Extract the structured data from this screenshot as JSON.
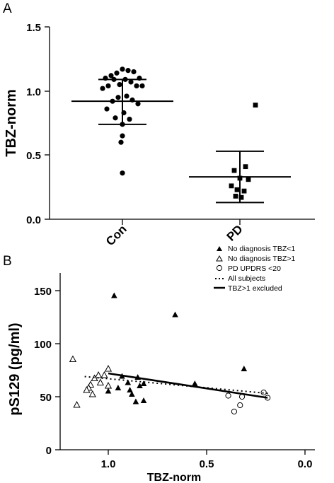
{
  "chart_data": [
    {
      "panel": "A",
      "type": "scatter",
      "ylabel": "TBZ-norm",
      "ylim": [
        0,
        1.5
      ],
      "yticks": [
        "0.0",
        "0.5",
        "1.0",
        "1.5"
      ],
      "categories": [
        "Con",
        "PD"
      ],
      "series": [
        {
          "category": "Con",
          "marker": "circle",
          "values": [
            1.17,
            1.16,
            1.14,
            1.15,
            1.12,
            1.1,
            1.1,
            1.09,
            1.09,
            1.07,
            1.05,
            1.04,
            1.04,
            1.04,
            1.02,
            0.96,
            0.95,
            0.93,
            0.92,
            0.9,
            0.86,
            0.83,
            0.79,
            0.78,
            0.74,
            0.65,
            0.6,
            0.36
          ],
          "mean": 0.92,
          "sd_upper": 1.09,
          "sd_lower": 0.74
        },
        {
          "category": "PD",
          "marker": "square",
          "values": [
            0.89,
            0.41,
            0.38,
            0.32,
            0.31,
            0.26,
            0.23,
            0.22,
            0.18,
            0.17
          ],
          "mean": 0.33,
          "sd_upper": 0.53,
          "sd_lower": 0.13
        }
      ]
    },
    {
      "panel": "B",
      "type": "scatter",
      "xlabel": "TBZ-norm",
      "ylabel": "pS129 (pg/ml)",
      "xlim": [
        1.25,
        0.0
      ],
      "ylim": [
        0,
        160
      ],
      "xticks": [
        "1.0",
        "0.5",
        "0.0"
      ],
      "yticks": [
        "0",
        "50",
        "100",
        "150"
      ],
      "legend_position": "top-right",
      "legend": [
        {
          "label": "No diagnosis TBZ<1",
          "symbol": "filled-triangle"
        },
        {
          "label": "No diagnosis TBZ>1",
          "symbol": "open-triangle"
        },
        {
          "label": "PD UPDRS <20",
          "symbol": "open-circle"
        },
        {
          "label": "All subjects",
          "symbol": "dotted-line"
        },
        {
          "label": "TBZ>1 excluded",
          "symbol": "solid-line"
        }
      ],
      "series": [
        {
          "name": "No diagnosis TBZ<1",
          "marker": "filled-triangle",
          "points": [
            [
              0.97,
              145
            ],
            [
              0.66,
              127
            ],
            [
              0.31,
              76
            ],
            [
              0.93,
              69
            ],
            [
              0.85,
              68
            ],
            [
              0.9,
              63
            ],
            [
              0.84,
              60
            ],
            [
              0.82,
              62
            ],
            [
              0.95,
              58
            ],
            [
              0.89,
              56
            ],
            [
              1.0,
              55
            ],
            [
              0.88,
              52
            ],
            [
              0.82,
              46
            ],
            [
              0.86,
              45
            ],
            [
              0.56,
              62
            ]
          ]
        },
        {
          "name": "No diagnosis TBZ>1",
          "marker": "open-triangle",
          "points": [
            [
              1.18,
              85
            ],
            [
              1.16,
              42
            ],
            [
              1.0,
              76
            ],
            [
              1.02,
              70
            ],
            [
              1.05,
              70
            ],
            [
              1.07,
              67
            ],
            [
              1.09,
              61
            ],
            [
              1.1,
              58
            ],
            [
              1.11,
              56
            ],
            [
              1.08,
              52
            ],
            [
              1.04,
              63
            ],
            [
              1.0,
              60
            ]
          ]
        },
        {
          "name": "PD UPDRS <20",
          "marker": "open-circle",
          "points": [
            [
              0.36,
              36
            ],
            [
              0.33,
              42
            ],
            [
              0.32,
              50
            ],
            [
              0.39,
              51
            ],
            [
              0.21,
              54
            ],
            [
              0.19,
              49
            ]
          ]
        },
        {
          "name": "All subjects",
          "line": "dotted",
          "points": [
            [
              1.12,
              69
            ],
            [
              0.18,
              53
            ]
          ]
        },
        {
          "name": "TBZ>1 excluded",
          "line": "solid",
          "points": [
            [
              1.0,
              72
            ],
            [
              0.19,
              49
            ]
          ]
        }
      ]
    }
  ],
  "panel_a": {
    "letter": "A",
    "ylabel": "TBZ-norm",
    "yticks": [
      "1.5",
      "1.0",
      "0.5",
      "0.0"
    ],
    "categories": [
      "Con",
      "PD"
    ]
  },
  "panel_b": {
    "letter": "B",
    "ylabel": "pS129 (pg/ml)",
    "xlabel": "TBZ-norm",
    "yticks": [
      "150",
      "100",
      "50",
      "0"
    ],
    "xticks": [
      "1.0",
      "0.5",
      "0.0"
    ],
    "legend": {
      "item1": "No diagnosis TBZ<1",
      "item2": "No diagnosis TBZ>1",
      "item3": "PD UPDRS <20",
      "item4": "All subjects",
      "item5": "TBZ>1 excluded"
    }
  }
}
